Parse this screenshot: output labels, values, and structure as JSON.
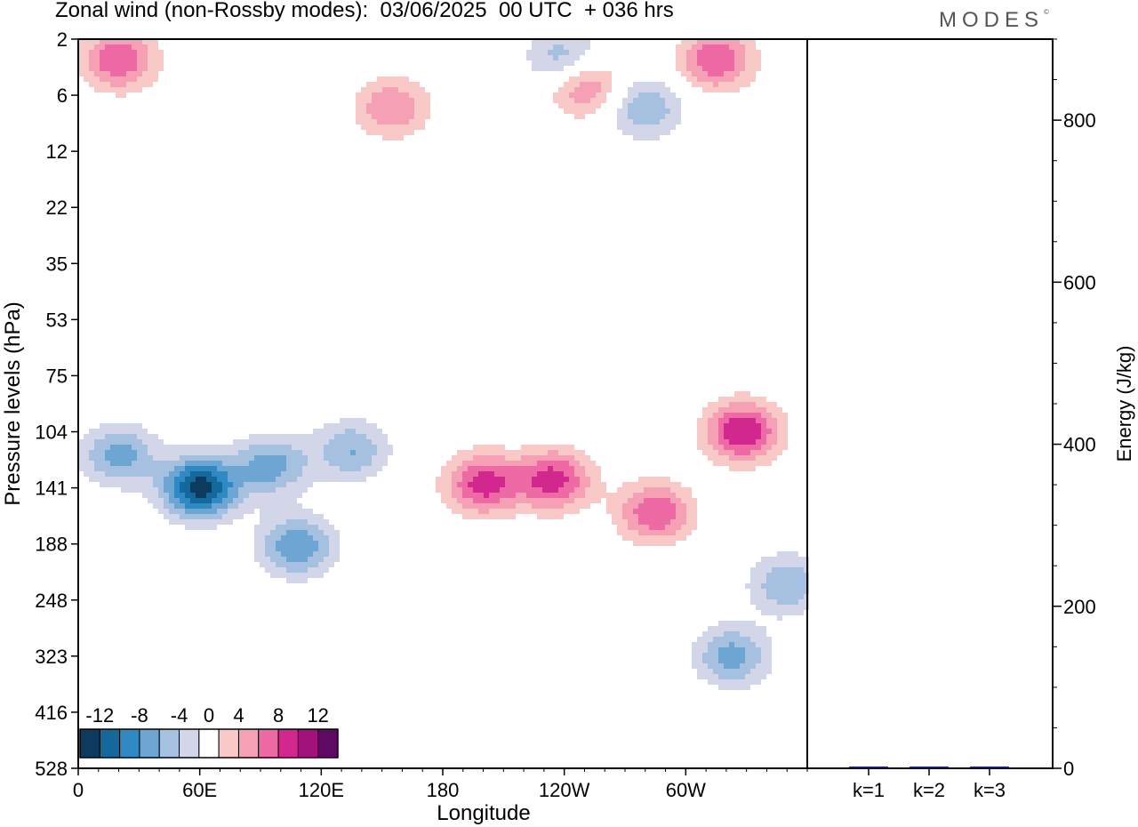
{
  "title": "Zonal wind (non-Rossby modes):  03/06/2025  00 UTC  + 036 hrs",
  "brand": "MODES",
  "brand_mark": "©",
  "colors": {
    "neg": [
      "#0d3b5e",
      "#14689c",
      "#2f8ac4",
      "#6ea6d3",
      "#a6c1df",
      "#d2d6e8"
    ],
    "zero": "#ffffff",
    "pos": [
      "#f8c9c6",
      "#f6a0b6",
      "#ee6aa5",
      "#d1278e",
      "#a1137a",
      "#5e0a63"
    ],
    "bar": "#1a1a6e"
  },
  "chart_data": [
    {
      "type": "heatmap",
      "title": "Zonal wind (non-Rossby modes):  03/06/2025  00 UTC  + 036 hrs",
      "xlabel": "Longitude",
      "ylabel": "Pressure levels (hPa)",
      "x_ticks": [
        "0",
        "60E",
        "120E",
        "180",
        "120W",
        "60W"
      ],
      "y_ticks": [
        2,
        6,
        12,
        22,
        35,
        53,
        75,
        104,
        141,
        188,
        248,
        323,
        416,
        528
      ],
      "colorbar_labels": [
        "-12",
        "-8",
        "-4",
        "0",
        "4",
        "8",
        "12"
      ],
      "color_levels": [
        -14,
        -12,
        -10,
        -8,
        -6,
        -4,
        -2,
        2,
        4,
        6,
        8,
        10,
        12,
        14
      ],
      "features": [
        {
          "lon": 60,
          "level": 141,
          "value": -13
        },
        {
          "lon": 20,
          "level": 118,
          "value": -7
        },
        {
          "lon": 95,
          "level": 125,
          "value": -7
        },
        {
          "lon": 108,
          "level": 190,
          "value": -8
        },
        {
          "lon": 135,
          "level": 115,
          "value": -6
        },
        {
          "lon": 200,
          "level": 138,
          "value": 9
        },
        {
          "lon": 235,
          "level": 135,
          "value": 9
        },
        {
          "lon": 285,
          "level": 160,
          "value": 8
        },
        {
          "lon": 328,
          "level": 104,
          "value": 10
        },
        {
          "lon": 20,
          "level": 3,
          "value": 8
        },
        {
          "lon": 155,
          "level": 7,
          "value": 6
        },
        {
          "lon": 250,
          "level": 5,
          "value": 7
        },
        {
          "lon": 315,
          "level": 3,
          "value": 8
        },
        {
          "lon": 240,
          "level": 3,
          "value": -6
        },
        {
          "lon": 280,
          "level": 7,
          "value": -6
        },
        {
          "lon": 323,
          "level": 323,
          "value": -7
        },
        {
          "lon": 350,
          "level": 230,
          "value": -6
        }
      ]
    },
    {
      "type": "bar",
      "ylabel": "Energy (J/kg)",
      "categories": [
        "k=1",
        "k=2",
        "k=3"
      ],
      "values": [
        2,
        1,
        1
      ],
      "ylim": [
        0,
        900
      ],
      "y_ticks": [
        0,
        200,
        400,
        600,
        800
      ]
    }
  ]
}
